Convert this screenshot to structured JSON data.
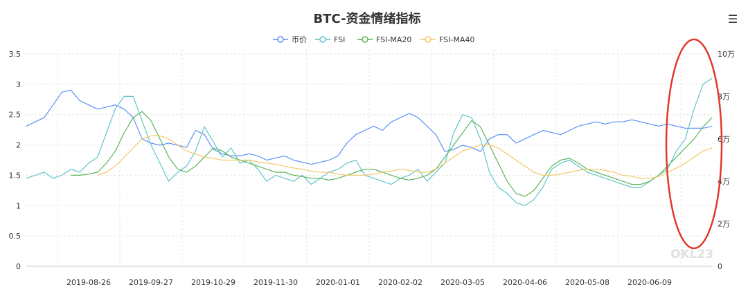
{
  "chart_data": {
    "type": "line",
    "title": "BTC-资金情绪指标",
    "x_tick_labels": [
      "2019-08-26",
      "2019-09-27",
      "2019-10-29",
      "2019-11-30",
      "2020-01-01",
      "2020-02-02",
      "2020-03-05",
      "2020-04-06",
      "2020-05-08",
      "2020-06-09"
    ],
    "y_left": {
      "min": 0,
      "max": 3.5,
      "ticks": [
        "0",
        "0.5",
        "1",
        "1.5",
        "2",
        "2.5",
        "3",
        "3.5"
      ]
    },
    "y_right": {
      "min": 0,
      "max": 100000,
      "ticks": [
        "0",
        "2万",
        "4万",
        "6万",
        "8万",
        "10万"
      ]
    },
    "grid": true,
    "legend_position": "top",
    "series": [
      {
        "name": "币价",
        "color": "#5b8ff9",
        "axis": "right",
        "values": [
          66000,
          68000,
          70000,
          76000,
          82000,
          83000,
          78000,
          76000,
          74000,
          75000,
          76000,
          74000,
          70000,
          60000,
          58000,
          57000,
          58000,
          57000,
          56000,
          64000,
          62000,
          55000,
          53000,
          52000,
          52000,
          53000,
          52000,
          50000,
          51000,
          52000,
          50000,
          49000,
          48000,
          49000,
          50000,
          52000,
          58000,
          62000,
          64000,
          66000,
          64000,
          68000,
          70000,
          72000,
          70000,
          66000,
          62000,
          54000,
          55000,
          57000,
          56000,
          54000,
          60000,
          62000,
          62000,
          58000,
          60000,
          62000,
          64000,
          63000,
          62000,
          64000,
          66000,
          67000,
          68000,
          67000,
          68000,
          68000,
          69000,
          68000,
          67000,
          66000,
          67000,
          66000,
          65000,
          65000,
          65000,
          66000
        ]
      },
      {
        "name": "FSI",
        "color": "#5fc5c9",
        "axis": "left",
        "values": [
          1.45,
          1.5,
          1.55,
          1.45,
          1.5,
          1.6,
          1.55,
          1.7,
          1.8,
          2.2,
          2.6,
          2.8,
          2.8,
          2.4,
          2.0,
          1.7,
          1.4,
          1.55,
          1.65,
          1.9,
          2.3,
          2.05,
          1.8,
          1.95,
          1.7,
          1.75,
          1.6,
          1.4,
          1.5,
          1.45,
          1.4,
          1.5,
          1.35,
          1.45,
          1.55,
          1.6,
          1.7,
          1.75,
          1.5,
          1.45,
          1.4,
          1.35,
          1.45,
          1.5,
          1.6,
          1.4,
          1.55,
          1.7,
          2.2,
          2.5,
          2.45,
          2.1,
          1.55,
          1.3,
          1.2,
          1.05,
          1.0,
          1.1,
          1.3,
          1.6,
          1.7,
          1.75,
          1.65,
          1.55,
          1.5,
          1.45,
          1.4,
          1.35,
          1.3,
          1.3,
          1.4,
          1.5,
          1.6,
          1.9,
          2.1,
          2.6,
          3.0,
          3.1
        ]
      },
      {
        "name": "FSI-MA20",
        "color": "#5ab45a",
        "axis": "left",
        "values": [
          null,
          null,
          null,
          null,
          null,
          1.5,
          1.5,
          1.52,
          1.55,
          1.7,
          1.9,
          2.2,
          2.45,
          2.55,
          2.4,
          2.1,
          1.8,
          1.6,
          1.55,
          1.65,
          1.8,
          1.95,
          1.9,
          1.8,
          1.75,
          1.7,
          1.65,
          1.6,
          1.55,
          1.55,
          1.5,
          1.48,
          1.45,
          1.45,
          1.42,
          1.45,
          1.5,
          1.55,
          1.6,
          1.6,
          1.55,
          1.5,
          1.45,
          1.42,
          1.45,
          1.5,
          1.6,
          1.8,
          2.0,
          2.2,
          2.4,
          2.3,
          2.0,
          1.7,
          1.4,
          1.2,
          1.15,
          1.25,
          1.45,
          1.65,
          1.75,
          1.78,
          1.7,
          1.6,
          1.55,
          1.5,
          1.45,
          1.4,
          1.35,
          1.35,
          1.4,
          1.5,
          1.65,
          1.8,
          1.95,
          2.1,
          2.3,
          2.45
        ]
      },
      {
        "name": "FSI-MA40",
        "color": "#f5c868",
        "axis": "left",
        "values": [
          null,
          null,
          null,
          null,
          null,
          null,
          null,
          null,
          1.5,
          1.55,
          1.65,
          1.8,
          1.95,
          2.1,
          2.15,
          2.15,
          2.1,
          2.0,
          1.9,
          1.85,
          1.8,
          1.78,
          1.75,
          1.75,
          1.75,
          1.75,
          1.72,
          1.7,
          1.68,
          1.65,
          1.62,
          1.6,
          1.57,
          1.55,
          1.55,
          1.52,
          1.5,
          1.5,
          1.5,
          1.52,
          1.55,
          1.57,
          1.6,
          1.58,
          1.55,
          1.55,
          1.6,
          1.7,
          1.8,
          1.9,
          1.95,
          2.0,
          2.0,
          1.95,
          1.85,
          1.75,
          1.65,
          1.55,
          1.5,
          1.5,
          1.52,
          1.55,
          1.58,
          1.6,
          1.6,
          1.58,
          1.55,
          1.5,
          1.48,
          1.45,
          1.45,
          1.48,
          1.55,
          1.62,
          1.7,
          1.8,
          1.9,
          1.95
        ]
      }
    ]
  },
  "toolbar": {
    "menu_icon": "☰"
  },
  "watermark": {
    "text": "OKL23"
  }
}
